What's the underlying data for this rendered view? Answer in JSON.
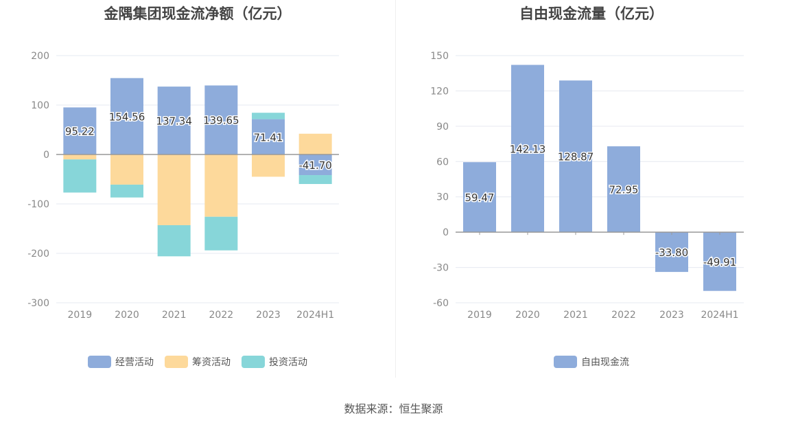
{
  "chart_data": [
    {
      "type": "bar",
      "stacked": true,
      "title": "金隅集团现金流净额（亿元）",
      "categories": [
        "2019",
        "2020",
        "2021",
        "2022",
        "2023",
        "2024H1"
      ],
      "ylim": [
        -300,
        200
      ],
      "yticks": [
        200,
        100,
        0,
        -100,
        -200,
        -300
      ],
      "grid": true,
      "legend_position": "bottom",
      "series": [
        {
          "name": "经营活动",
          "color": "#8eacdb",
          "values": [
            95.22,
            154.56,
            137.34,
            139.65,
            71.41,
            -41.7
          ]
        },
        {
          "name": "筹资活动",
          "color": "#fdd99b",
          "values": [
            -10,
            -61,
            -143,
            -126,
            -45,
            42
          ]
        },
        {
          "name": "投资活动",
          "color": "#87d6d9",
          "values": [
            -67,
            -26,
            -63,
            -68,
            13,
            -18
          ]
        }
      ],
      "data_labels": [
        "95.22",
        "154.56",
        "137.34",
        "139.65",
        "71.41",
        "-41.70"
      ]
    },
    {
      "type": "bar",
      "title": "自由现金流量（亿元）",
      "categories": [
        "2019",
        "2020",
        "2021",
        "2022",
        "2023",
        "2024H1"
      ],
      "ylim": [
        -60,
        150
      ],
      "yticks": [
        150,
        120,
        90,
        60,
        30,
        0,
        -30,
        -60
      ],
      "grid": true,
      "legend_position": "bottom",
      "series": [
        {
          "name": "自由现金流",
          "color": "#8eacdb",
          "values": [
            59.47,
            142.13,
            128.87,
            72.95,
            -33.8,
            -49.91
          ]
        }
      ],
      "data_labels": [
        "59.47",
        "142.13",
        "128.87",
        "72.95",
        "-33.80",
        "-49.91"
      ]
    }
  ],
  "source_text": "数据来源：恒生聚源"
}
